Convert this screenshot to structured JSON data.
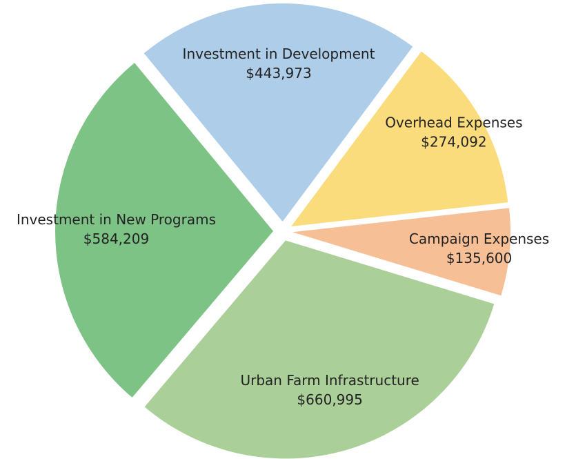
{
  "chart_data": {
    "type": "pie",
    "categories": [
      "Investment in Development",
      "Overhead Expenses",
      "Campaign Expenses",
      "Urban Farm Infrastructure",
      "Investment in New Programs"
    ],
    "values": [
      443973,
      274092,
      135600,
      660995,
      584209
    ],
    "value_labels": [
      "$443,973",
      "$274,092",
      "$135,600",
      "$660,995",
      "$584,209"
    ],
    "colors": [
      "#aecde9",
      "#fbdc7d",
      "#f6bf95",
      "#abcf98",
      "#7dc385"
    ]
  }
}
